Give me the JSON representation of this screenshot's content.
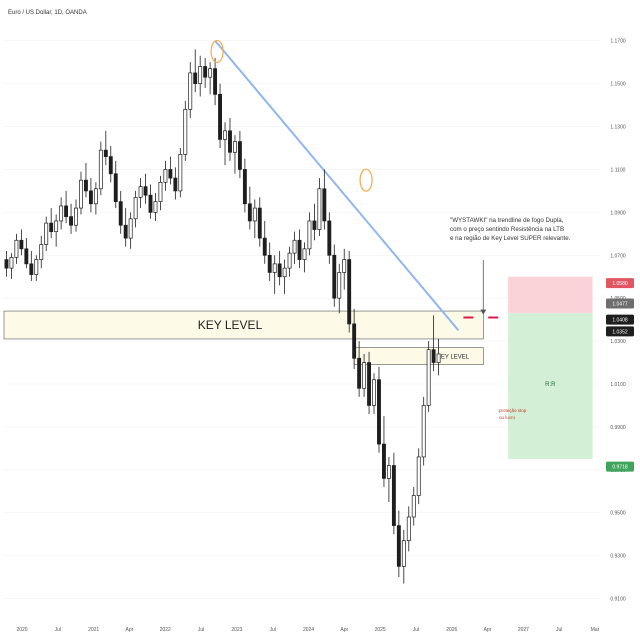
{
  "header": {
    "symbol_line": "Euro / US Dollar, 1D, OANDA"
  },
  "chart_data": {
    "type": "candlestick",
    "title": "",
    "colors": {
      "candle": "#1e1e1e",
      "trendline": "#8fb6f0",
      "key_zone_fill": "#fdfbe8",
      "key_zone_border": "#555555",
      "touch_marker": "#f5a94e",
      "stop_fill": "#f9d3d8",
      "target_fill": "#d3efd6",
      "stop_marker": "#d81b4a",
      "price_tag_red": "#e05561",
      "price_tag_gray": "#6e6e6e",
      "price_tag_dark": "#1e1e1e",
      "price_tag_green": "#3fa55c",
      "axis_text": "#555555"
    },
    "y_axis": {
      "min": 0.9,
      "max": 1.175,
      "ticks": [
        {
          "value": 1.17,
          "label": "1.1700"
        },
        {
          "value": 1.15,
          "label": "1.1500"
        },
        {
          "value": 1.13,
          "label": "1.1300"
        },
        {
          "value": 1.11,
          "label": "1.1100"
        },
        {
          "value": 1.09,
          "label": "1.0900"
        },
        {
          "value": 1.07,
          "label": "1.0700"
        },
        {
          "value": 1.05,
          "label": "1.0500"
        },
        {
          "value": 1.03,
          "label": "1.0300"
        },
        {
          "value": 1.01,
          "label": "1.0100"
        },
        {
          "value": 0.99,
          "label": "0.9900"
        },
        {
          "value": 0.97,
          "label": "0.9700"
        },
        {
          "value": 0.95,
          "label": "0.9500"
        },
        {
          "value": 0.93,
          "label": "0.9300"
        },
        {
          "value": 0.91,
          "label": "0.9100"
        }
      ]
    },
    "x_axis": {
      "labels": [
        "2020",
        "Jul",
        "2021",
        "Apr",
        "2022",
        "Jul",
        "2023",
        "Jul",
        "2024",
        "Apr",
        "2025",
        "Jul",
        "2026",
        "Apr",
        "2027",
        "Jul",
        "Mar"
      ]
    },
    "candles": [
      [
        1.068,
        1.072,
        1.06,
        1.064
      ],
      [
        1.064,
        1.071,
        1.059,
        1.069
      ],
      [
        1.069,
        1.08,
        1.066,
        1.077
      ],
      [
        1.077,
        1.082,
        1.07,
        1.073
      ],
      [
        1.073,
        1.078,
        1.064,
        1.066
      ],
      [
        1.066,
        1.072,
        1.058,
        1.061
      ],
      [
        1.061,
        1.07,
        1.058,
        1.068
      ],
      [
        1.068,
        1.079,
        1.064,
        1.075
      ],
      [
        1.075,
        1.088,
        1.072,
        1.085
      ],
      [
        1.085,
        1.092,
        1.078,
        1.081
      ],
      [
        1.081,
        1.089,
        1.074,
        1.086
      ],
      [
        1.086,
        1.097,
        1.082,
        1.093
      ],
      [
        1.093,
        1.1,
        1.085,
        1.088
      ],
      [
        1.088,
        1.094,
        1.08,
        1.084
      ],
      [
        1.084,
        1.096,
        1.081,
        1.092
      ],
      [
        1.092,
        1.109,
        1.089,
        1.105
      ],
      [
        1.105,
        1.113,
        1.097,
        1.1
      ],
      [
        1.1,
        1.106,
        1.09,
        1.094
      ],
      [
        1.094,
        1.104,
        1.089,
        1.101
      ],
      [
        1.101,
        1.123,
        1.098,
        1.119
      ],
      [
        1.119,
        1.128,
        1.112,
        1.116
      ],
      [
        1.116,
        1.121,
        1.104,
        1.108
      ],
      [
        1.108,
        1.114,
        1.092,
        1.095
      ],
      [
        1.095,
        1.1,
        1.08,
        1.084
      ],
      [
        1.084,
        1.092,
        1.074,
        1.078
      ],
      [
        1.078,
        1.09,
        1.073,
        1.087
      ],
      [
        1.087,
        1.1,
        1.083,
        1.097
      ],
      [
        1.097,
        1.106,
        1.092,
        1.102
      ],
      [
        1.102,
        1.108,
        1.094,
        1.098
      ],
      [
        1.098,
        1.103,
        1.087,
        1.09
      ],
      [
        1.09,
        1.099,
        1.086,
        1.095
      ],
      [
        1.095,
        1.107,
        1.091,
        1.104
      ],
      [
        1.104,
        1.114,
        1.1,
        1.11
      ],
      [
        1.11,
        1.116,
        1.103,
        1.106
      ],
      [
        1.106,
        1.111,
        1.096,
        1.1
      ],
      [
        1.1,
        1.12,
        1.097,
        1.117
      ],
      [
        1.117,
        1.142,
        1.114,
        1.138
      ],
      [
        1.138,
        1.16,
        1.134,
        1.155
      ],
      [
        1.155,
        1.166,
        1.146,
        1.15
      ],
      [
        1.15,
        1.163,
        1.144,
        1.158
      ],
      [
        1.158,
        1.162,
        1.148,
        1.153
      ],
      [
        1.153,
        1.16,
        1.145,
        1.157
      ],
      [
        1.157,
        1.162,
        1.14,
        1.145
      ],
      [
        1.145,
        1.15,
        1.12,
        1.124
      ],
      [
        1.124,
        1.132,
        1.112,
        1.128
      ],
      [
        1.128,
        1.134,
        1.114,
        1.118
      ],
      [
        1.118,
        1.126,
        1.108,
        1.123
      ],
      [
        1.123,
        1.128,
        1.106,
        1.11
      ],
      [
        1.11,
        1.115,
        1.09,
        1.094
      ],
      [
        1.094,
        1.102,
        1.082,
        1.086
      ],
      [
        1.086,
        1.096,
        1.078,
        1.092
      ],
      [
        1.092,
        1.097,
        1.074,
        1.078
      ],
      [
        1.078,
        1.086,
        1.066,
        1.07
      ],
      [
        1.07,
        1.076,
        1.058,
        1.062
      ],
      [
        1.062,
        1.07,
        1.052,
        1.066
      ],
      [
        1.066,
        1.072,
        1.056,
        1.06
      ],
      [
        1.06,
        1.068,
        1.052,
        1.064
      ],
      [
        1.064,
        1.074,
        1.06,
        1.071
      ],
      [
        1.071,
        1.081,
        1.066,
        1.077
      ],
      [
        1.077,
        1.082,
        1.064,
        1.068
      ],
      [
        1.068,
        1.076,
        1.062,
        1.073
      ],
      [
        1.073,
        1.09,
        1.07,
        1.086
      ],
      [
        1.086,
        1.094,
        1.077,
        1.082
      ],
      [
        1.082,
        1.106,
        1.079,
        1.101
      ],
      [
        1.101,
        1.11,
        1.082,
        1.086
      ],
      [
        1.086,
        1.09,
        1.066,
        1.07
      ],
      [
        1.07,
        1.075,
        1.046,
        1.05
      ],
      [
        1.05,
        1.066,
        1.043,
        1.062
      ],
      [
        1.062,
        1.073,
        1.054,
        1.068
      ],
      [
        1.068,
        1.072,
        1.034,
        1.038
      ],
      [
        1.038,
        1.045,
        1.017,
        1.022
      ],
      [
        1.022,
        1.03,
        1.004,
        1.008
      ],
      [
        1.008,
        1.024,
        1.004,
        1.02
      ],
      [
        1.02,
        1.025,
        0.996,
        1.0
      ],
      [
        1.0,
        1.015,
        0.996,
        1.012
      ],
      [
        1.012,
        1.018,
        0.978,
        0.982
      ],
      [
        0.982,
        0.995,
        0.962,
        0.966
      ],
      [
        0.966,
        0.976,
        0.955,
        0.972
      ],
      [
        0.972,
        0.978,
        0.94,
        0.944
      ],
      [
        0.944,
        0.951,
        0.92,
        0.925
      ],
      [
        0.925,
        0.942,
        0.917,
        0.937
      ],
      [
        0.937,
        0.953,
        0.932,
        0.948
      ],
      [
        0.948,
        0.962,
        0.944,
        0.958
      ],
      [
        0.958,
        0.98,
        0.954,
        0.976
      ],
      [
        0.976,
        1.004,
        0.972,
        1.0
      ],
      [
        1.0,
        1.03,
        0.997,
        1.026
      ],
      [
        1.026,
        1.042,
        1.016,
        1.02
      ],
      [
        1.02,
        1.031,
        1.014,
        1.024
      ]
    ],
    "trendline": {
      "from": [
        42,
        1.17
      ],
      "to": [
        91,
        1.035
      ]
    },
    "touch_points": [
      [
        42,
        1.165
      ],
      [
        72,
        1.105
      ]
    ],
    "zones": [
      {
        "label": "KEY LEVEL",
        "top": 1.044,
        "bottom": 1.031,
        "from": 0,
        "to": 96
      },
      {
        "label": "KEY LEVEL",
        "top": 1.027,
        "bottom": 1.019,
        "from": 70,
        "to": 96
      }
    ],
    "annotation": {
      "lines": [
        "\"WYSTAWKI\" na trendline de fogo Dupla,",
        "com o preço sentindo Resistência na LTB",
        "e na região de Key Level SUPER relevante."
      ],
      "pointer_to": [
        96,
        1.04
      ]
    },
    "small_note": [
      "proteção stop",
      "ou lucro"
    ],
    "position": {
      "from": 101,
      "to": 118,
      "stop": 1.06,
      "entry": 1.043,
      "target": 0.975,
      "ratio_label": "R:R"
    },
    "stop_marks": [
      [
        93,
        1.041
      ],
      [
        98,
        1.041
      ]
    ],
    "price_tags": [
      {
        "label": "1.0580",
        "value": 1.057,
        "kind": "red"
      },
      {
        "label": "1.0477",
        "value": 1.0475,
        "kind": "gray"
      },
      {
        "label": "1.0408",
        "value": 1.04,
        "kind": "dark"
      },
      {
        "label": "1.0352",
        "value": 1.0345,
        "kind": "dark"
      },
      {
        "label": "0.9718",
        "value": 0.9715,
        "kind": "green"
      }
    ],
    "x_units": 120
  }
}
